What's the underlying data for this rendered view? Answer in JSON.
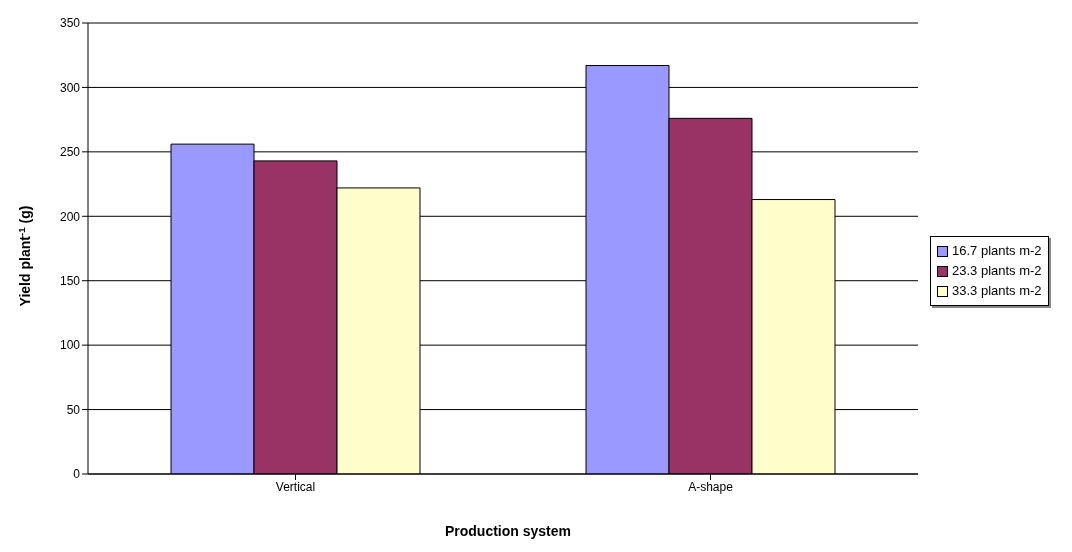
{
  "chart_data": {
    "type": "bar",
    "xlabel": "Production system",
    "ylabel": "Yield plant$^{-1}$ (g)",
    "categories": [
      "Vertical",
      "A-shape"
    ],
    "series": [
      {
        "name": "16.7 plants m-2",
        "color": "#9999ff",
        "values": [
          256,
          317
        ]
      },
      {
        "name": "23.3 plants m-2",
        "color": "#993366",
        "values": [
          243,
          276
        ]
      },
      {
        "name": "33.3 plants m-2",
        "color": "#ffffcc",
        "values": [
          222,
          213
        ]
      }
    ],
    "ylim": [
      0,
      350
    ],
    "yticks": [
      0,
      50,
      100,
      150,
      200,
      250,
      300,
      350
    ],
    "grid": "y",
    "legend": "right"
  }
}
